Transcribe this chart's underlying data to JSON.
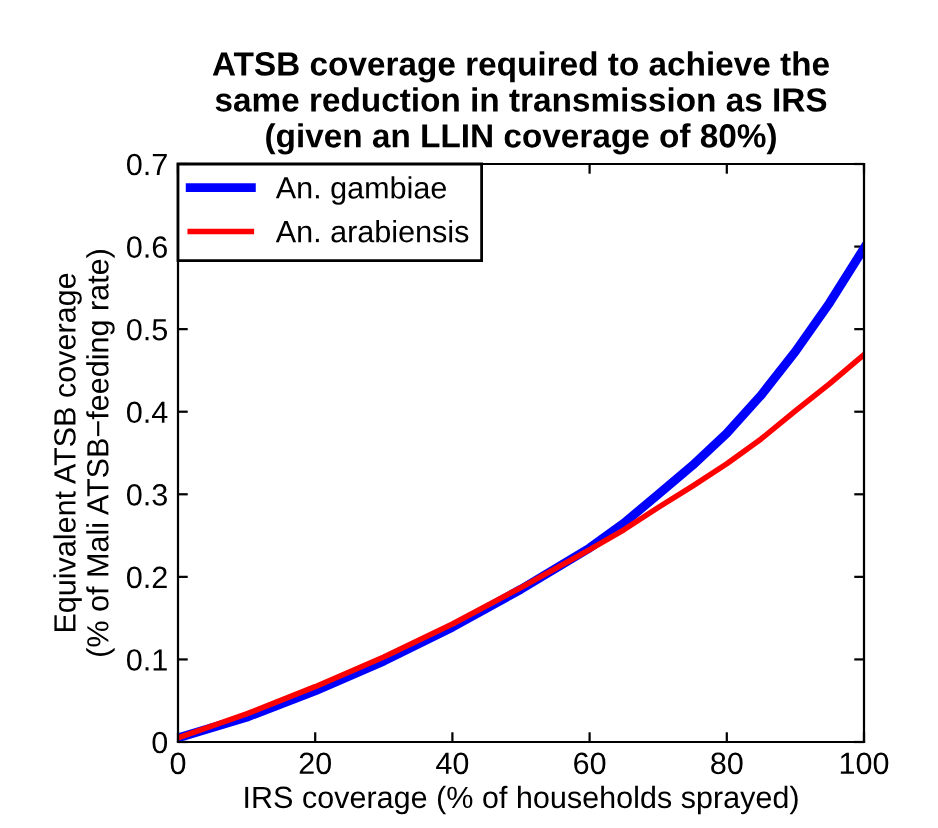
{
  "chart_data": {
    "type": "line",
    "title": "ATSB coverage required to achieve the\nsame reduction in transmission as IRS\n(given an LLIN coverage of 80%)",
    "xlabel": "IRS coverage (% of households sprayed)",
    "ylabel": "Equivalent ATSB coverage\n(% of Mali ATSB−feeding rate)",
    "x": [
      0,
      10,
      20,
      30,
      40,
      50,
      60,
      65,
      70,
      75,
      80,
      85,
      90,
      95,
      100
    ],
    "series": [
      {
        "name": "An. gambiae",
        "color": "#0000ff",
        "values": [
          0.005,
          0.03,
          0.062,
          0.098,
          0.139,
          0.185,
          0.235,
          0.265,
          0.3,
          0.335,
          0.374,
          0.42,
          0.473,
          0.532,
          0.598
        ]
      },
      {
        "name": "An. arabiensis",
        "color": "#ff0000",
        "values": [
          0.005,
          0.034,
          0.067,
          0.103,
          0.143,
          0.187,
          0.233,
          0.257,
          0.284,
          0.31,
          0.337,
          0.367,
          0.401,
          0.434,
          0.469
        ]
      }
    ],
    "xlim": [
      0,
      100
    ],
    "ylim": [
      0,
      0.7
    ],
    "xticks": [
      0,
      20,
      40,
      60,
      80,
      100
    ],
    "yticks": [
      0,
      0.1,
      0.2,
      0.3,
      0.4,
      0.5,
      0.6,
      0.7
    ],
    "legend": "top left",
    "grid": false,
    "marker": "none",
    "line_style": "solid"
  }
}
